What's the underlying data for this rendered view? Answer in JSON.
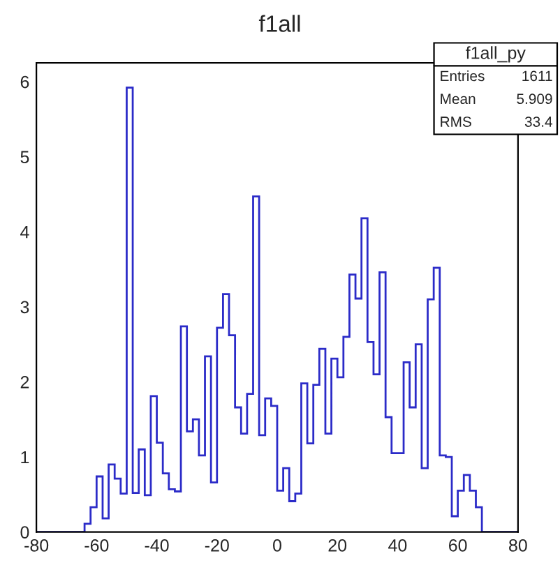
{
  "chart_data": {
    "type": "histogram",
    "title": "f1all",
    "bins": [
      -80,
      -78,
      -76,
      -74,
      -72,
      -70,
      -68,
      -66,
      -64,
      -62,
      -60,
      -58,
      -56,
      -54,
      -52,
      -50,
      -48,
      -46,
      -44,
      -42,
      -40,
      -38,
      -36,
      -34,
      -32,
      -30,
      -28,
      -26,
      -24,
      -22,
      -20,
      -18,
      -16,
      -14,
      -12,
      -10,
      -8,
      -6,
      -4,
      -2,
      0,
      2,
      4,
      6,
      8,
      10,
      12,
      14,
      16,
      18,
      20,
      22,
      24,
      26,
      28,
      30,
      32,
      34,
      36,
      38,
      40,
      42,
      44,
      46,
      48,
      50,
      52,
      54,
      56,
      58,
      60,
      62,
      64,
      66,
      68,
      70,
      72,
      74,
      76,
      78,
      80
    ],
    "values": [
      0,
      0,
      0,
      0,
      0,
      0,
      0,
      0,
      0.11,
      0.33,
      0.74,
      0.18,
      0.9,
      0.71,
      0.51,
      5.92,
      0.52,
      1.1,
      0.49,
      1.81,
      1.19,
      0.78,
      0.57,
      0.54,
      2.74,
      1.34,
      1.5,
      1.02,
      2.34,
      0.66,
      2.72,
      3.17,
      2.62,
      1.66,
      1.31,
      1.84,
      4.47,
      1.29,
      1.78,
      1.68,
      0.55,
      0.85,
      0.41,
      0.51,
      1.98,
      1.18,
      1.96,
      2.44,
      1.31,
      2.31,
      2.06,
      2.6,
      3.43,
      3.11,
      4.18,
      2.53,
      2.1,
      3.46,
      1.53,
      1.05,
      1.05,
      2.26,
      1.66,
      2.5,
      0.85,
      3.1,
      3.52,
      1.02,
      1.0,
      0.21,
      0.55,
      0.76,
      0.55,
      0.33,
      0,
      0,
      0,
      0,
      0,
      0
    ],
    "color": "#2b2bc8",
    "xlim": [
      -80,
      80
    ],
    "xticks": [
      -80,
      -60,
      -40,
      -20,
      0,
      20,
      40,
      60,
      80
    ],
    "ylim": [
      0,
      6.25
    ],
    "yticks": [
      0,
      1,
      2,
      3,
      4,
      5,
      6
    ],
    "grid": false,
    "annotations": [
      "f1all_py",
      "Entries",
      "1611",
      "Mean",
      "5.909",
      "RMS",
      "33.4"
    ]
  }
}
